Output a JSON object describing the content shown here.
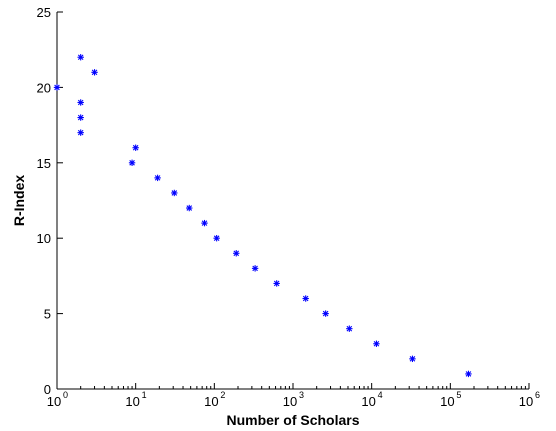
{
  "chart_data": {
    "type": "scatter",
    "title": "",
    "xlabel": "Number of Scholars",
    "ylabel": "R-Index",
    "xscale": "log",
    "xlim": [
      1,
      1000000
    ],
    "ylim": [
      0,
      25
    ],
    "x_ticks": [
      {
        "base": "10",
        "exp": "0"
      },
      {
        "base": "10",
        "exp": "1"
      },
      {
        "base": "10",
        "exp": "2"
      },
      {
        "base": "10",
        "exp": "3"
      },
      {
        "base": "10",
        "exp": "4"
      },
      {
        "base": "10",
        "exp": "5"
      },
      {
        "base": "10",
        "exp": "6"
      }
    ],
    "y_ticks": [
      "0",
      "5",
      "10",
      "15",
      "20",
      "25"
    ],
    "marker": "*",
    "marker_color": "#0000ff",
    "grid": false,
    "points": [
      {
        "x": 1,
        "y": 20
      },
      {
        "x": 2,
        "y": 22
      },
      {
        "x": 2,
        "y": 19
      },
      {
        "x": 2,
        "y": 18
      },
      {
        "x": 2,
        "y": 17
      },
      {
        "x": 3,
        "y": 21
      },
      {
        "x": 9,
        "y": 15
      },
      {
        "x": 10,
        "y": 16
      },
      {
        "x": 19,
        "y": 14
      },
      {
        "x": 31,
        "y": 13
      },
      {
        "x": 48,
        "y": 12
      },
      {
        "x": 75,
        "y": 11
      },
      {
        "x": 107,
        "y": 10
      },
      {
        "x": 190,
        "y": 9
      },
      {
        "x": 330,
        "y": 8
      },
      {
        "x": 620,
        "y": 7
      },
      {
        "x": 1450,
        "y": 6
      },
      {
        "x": 2600,
        "y": 5
      },
      {
        "x": 5200,
        "y": 4
      },
      {
        "x": 11500,
        "y": 3
      },
      {
        "x": 33000,
        "y": 2
      },
      {
        "x": 170000,
        "y": 1
      }
    ]
  }
}
